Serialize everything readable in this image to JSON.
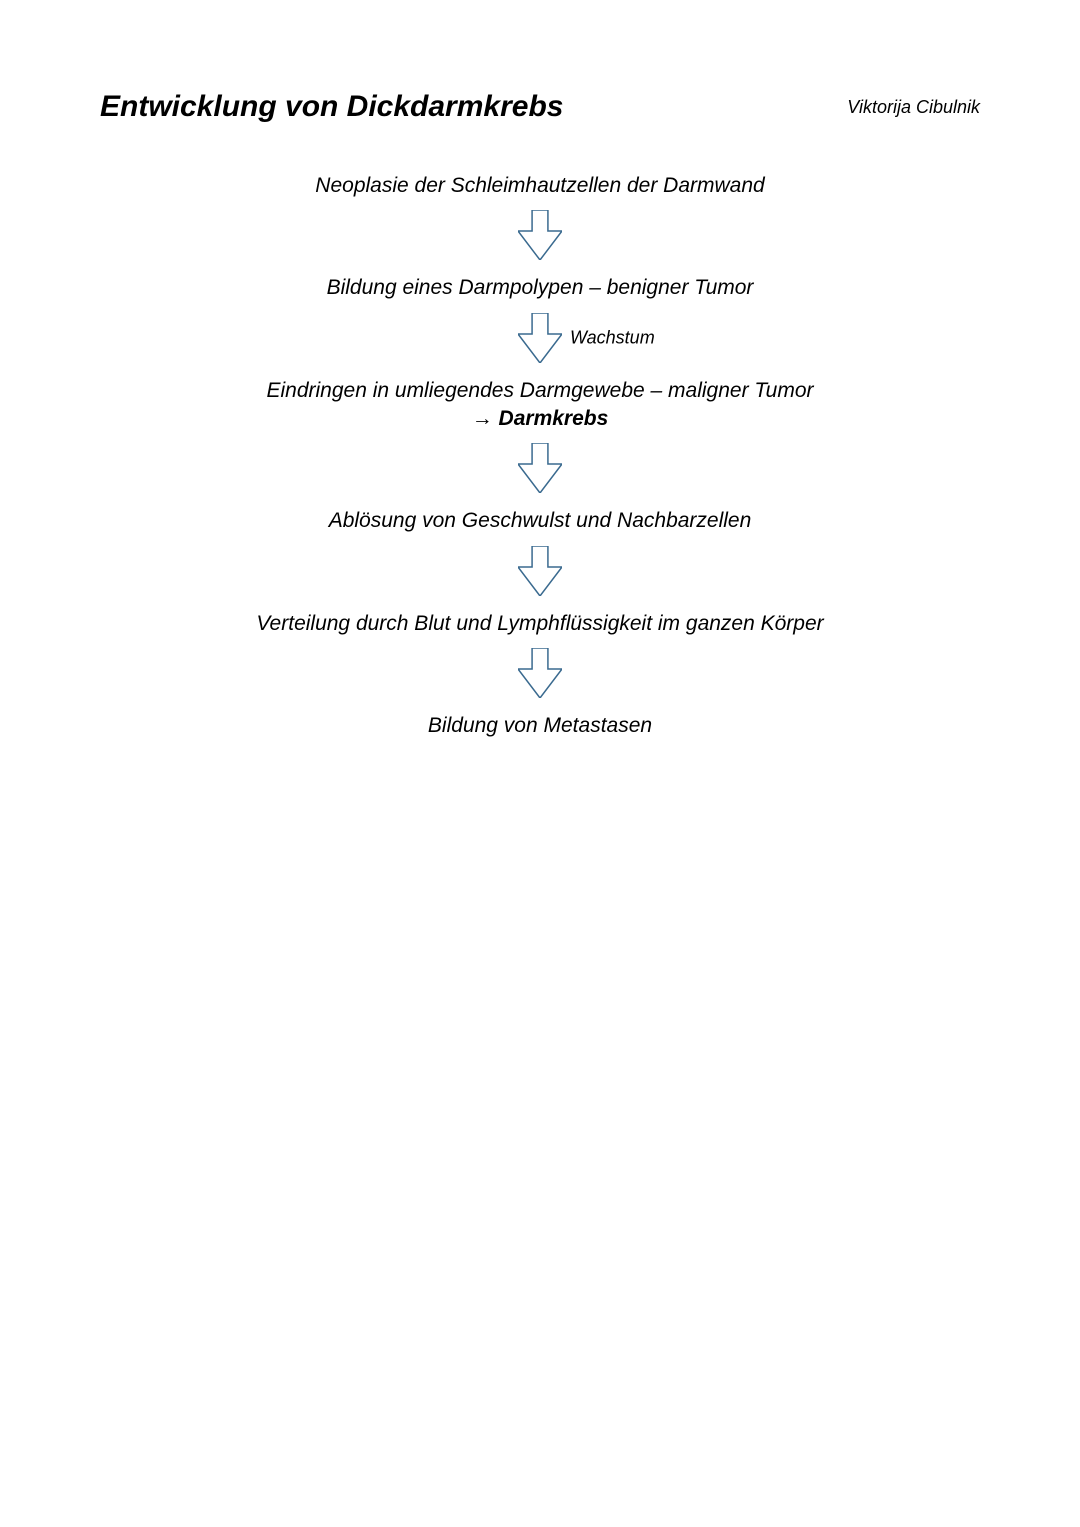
{
  "page": {
    "title": "Entwicklung von Dickdarmkrebs",
    "author": "Viktorija Cibulnik",
    "title_fontsize": 30,
    "author_fontsize": 18
  },
  "flow": {
    "type": "flowchart",
    "background_color": "#ffffff",
    "text_color": "#000000",
    "step_fontsize": 21,
    "label_fontsize": 18,
    "bold_fontsize": 21,
    "arrow_stroke": "#3a6a8f",
    "arrow_fill": "#ffffff",
    "arrow_stroke_width": 1.5,
    "arrow_width": 44,
    "arrow_height": 50,
    "gap_above_arrow": 10,
    "gap_below_arrow": 14,
    "steps": [
      {
        "text": "Neoplasie der Schleimhautzellen der Darmwand"
      },
      {
        "text": "Bildung eines Darmpolypen – benigner Tumor"
      },
      {
        "text": "Eindringen in umliegendes Darmgewebe – maligner Tumor",
        "bold_suffix": "→ Darmkrebs"
      },
      {
        "text": "Ablösung von Geschwulst und Nachbarzellen"
      },
      {
        "text": "Verteilung durch Blut und Lymphflüssigkeit im ganzen Körper"
      },
      {
        "text": "Bildung von Metastasen"
      }
    ],
    "arrow_labels": [
      "",
      "Wachstum",
      "",
      "",
      ""
    ]
  }
}
